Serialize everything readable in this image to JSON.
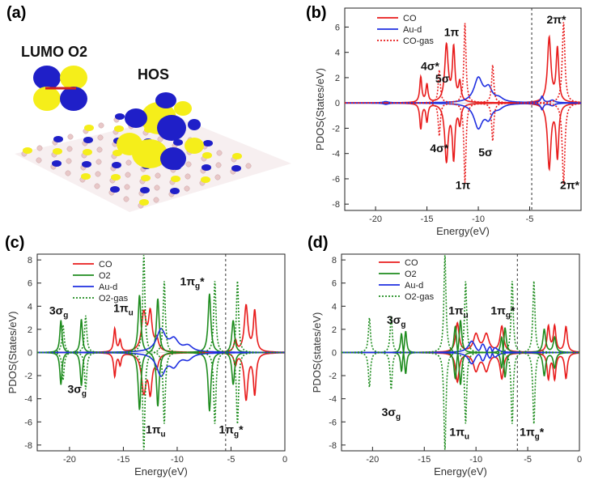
{
  "panel_a": {
    "label": "(a)",
    "lumo_label": "LUMO O2",
    "hos_label": "HOS",
    "colors": {
      "positive": "#f5ee1a",
      "negative": "#1f1fc8",
      "lattice_node": "#e8c8c8"
    }
  },
  "chart_data": [
    {
      "panel": "(b)",
      "type": "line",
      "xlabel": "Energy(eV)",
      "ylabel": "PDOS(States/eV)",
      "xlim": [
        -23,
        0
      ],
      "ylim": [
        -8.5,
        7.5
      ],
      "xticks": [
        -20,
        -15,
        -10,
        -5
      ],
      "yticks": [
        -8,
        -6,
        -4,
        -2,
        0,
        2,
        4,
        6
      ],
      "fermi_level": -4.8,
      "legend_position": "top-left",
      "series": [
        {
          "name": "CO",
          "color": "#e81c1c",
          "style": "solid",
          "peaks": [
            [
              -15.6,
              2.0,
              0.12
            ],
            [
              -15.0,
              1.4,
              0.12
            ],
            [
              -13.1,
              4.5,
              0.2
            ],
            [
              -12.4,
              4.2,
              0.15
            ],
            [
              -11.8,
              1.5,
              0.15
            ],
            [
              -3.1,
              5.1,
              0.2
            ],
            [
              -2.3,
              4.2,
              0.15
            ]
          ]
        },
        {
          "name": "Au-d",
          "color": "#1f2fe0",
          "style": "solid",
          "peaks": [
            [
              -19.0,
              0.1,
              0.3
            ],
            [
              -10.0,
              1.9,
              0.5
            ],
            [
              -9.0,
              1.0,
              0.4
            ],
            [
              -8.0,
              0.3,
              0.5
            ],
            [
              -3.8,
              0.5,
              0.15
            ],
            [
              -2.8,
              0.2,
              0.3
            ]
          ]
        },
        {
          "name": "CO-gas",
          "color": "#e81c1c",
          "style": "dotted",
          "peaks": [
            [
              -13.8,
              2.6,
              0.12
            ],
            [
              -11.3,
              6.3,
              0.12
            ],
            [
              -8.6,
              3.0,
              0.12
            ],
            [
              -1.7,
              6.4,
              0.15
            ]
          ]
        }
      ],
      "annotations": [
        {
          "text": "1π",
          "x": -12.6,
          "y": 5.3
        },
        {
          "text": "2π*",
          "x": -2.4,
          "y": 6.3
        },
        {
          "text": "4σ*",
          "x": -14.7,
          "y": 2.6
        },
        {
          "text": "5σ",
          "x": -13.5,
          "y": 1.6
        },
        {
          "text": "4σ*",
          "x": -13.8,
          "y": -3.9
        },
        {
          "text": "5σ",
          "x": -9.3,
          "y": -4.2
        },
        {
          "text": "1π",
          "x": -11.5,
          "y": -6.8
        },
        {
          "text": "2π*",
          "x": -1.1,
          "y": -6.8
        }
      ]
    },
    {
      "panel": "(c)",
      "type": "line",
      "xlabel": "Energy(eV)",
      "ylabel": "PDOS(States/eV)",
      "xlim": [
        -23,
        0
      ],
      "ylim": [
        -8.5,
        8.5
      ],
      "xticks": [
        -20,
        -15,
        -10,
        -5,
        0
      ],
      "yticks": [
        -8,
        -6,
        -4,
        -2,
        0,
        2,
        4,
        6,
        8
      ],
      "fermi_level": -5.5,
      "legend_position": "top-center",
      "series": [
        {
          "name": "CO",
          "color": "#e81c1c",
          "style": "solid",
          "peaks": [
            [
              -15.8,
              2.0,
              0.12
            ],
            [
              -15.3,
              1.0,
              0.12
            ],
            [
              -13.1,
              3.3,
              0.25
            ],
            [
              -12.5,
              3.2,
              0.2
            ],
            [
              -11.9,
              1.0,
              0.2
            ],
            [
              -4.6,
              1.0,
              0.15
            ],
            [
              -3.6,
              4.0,
              0.2
            ],
            [
              -2.8,
              3.5,
              0.15
            ]
          ]
        },
        {
          "name": "O2",
          "color": "#1e8c1e",
          "style": "solid",
          "peaks": [
            [
              -20.8,
              2.8,
              0.12
            ],
            [
              -18.9,
              -2.9,
              0.12
            ],
            [
              -13.5,
              5.0,
              0.15
            ],
            [
              -11.8,
              -4.7,
              0.15
            ],
            [
              -7.0,
              5.1,
              0.15
            ],
            [
              -4.8,
              -2.8,
              0.15
            ]
          ]
        },
        {
          "name": "Au-d",
          "color": "#1f2fe0",
          "style": "solid",
          "peaks": [
            [
              -11.5,
              1.9,
              0.5
            ],
            [
              -10.3,
              1.0,
              0.5
            ],
            [
              -9.0,
              0.5,
              0.5
            ]
          ]
        },
        {
          "name": "O2-gas",
          "color": "#1e8c1e",
          "style": "dotted",
          "peaks": [
            [
              -20.6,
              2.4,
              0.12
            ],
            [
              -18.5,
              -3.2,
              0.12
            ],
            [
              -13.1,
              8.5,
              0.12
            ],
            [
              -11.2,
              -6.2,
              0.12
            ],
            [
              -6.5,
              6.2,
              0.12
            ],
            [
              -4.4,
              -6.2,
              0.12
            ]
          ]
        }
      ],
      "annotations": [
        {
          "text": "3σg",
          "x": -21.0,
          "y": 3.3
        },
        {
          "text": "1πu",
          "x": -15.0,
          "y": 3.5
        },
        {
          "text": "1πg*",
          "x": -8.6,
          "y": 5.8
        },
        {
          "text": "3σg",
          "x": -19.3,
          "y": -3.5
        },
        {
          "text": "1πu",
          "x": -12.0,
          "y": -7.0
        },
        {
          "text": "1πg*",
          "x": -5.0,
          "y": -7.0
        }
      ]
    },
    {
      "panel": "(d)",
      "type": "line",
      "xlabel": "Energy(eV)",
      "ylabel": "PDOS(states/eV)",
      "xlim": [
        -23,
        0
      ],
      "ylim": [
        -8.5,
        8.5
      ],
      "xticks": [
        -20,
        -15,
        -10,
        -5,
        0
      ],
      "yticks": [
        -8,
        -6,
        -4,
        -2,
        0,
        2,
        4,
        6,
        8
      ],
      "fermi_level": -6.0,
      "legend_position": "top-left",
      "series": [
        {
          "name": "CO",
          "color": "#e81c1c",
          "style": "solid",
          "peaks": [
            [
              -11.8,
              2.5,
              0.2
            ],
            [
              -10.0,
              1.5,
              0.3
            ],
            [
              -9.0,
              1.5,
              0.3
            ],
            [
              -7.5,
              2.2,
              0.2
            ],
            [
              -3.0,
              2.2,
              0.15
            ],
            [
              -2.4,
              2.2,
              0.15
            ],
            [
              -1.3,
              2.2,
              0.15
            ]
          ]
        },
        {
          "name": "O2",
          "color": "#1e8c1e",
          "style": "solid",
          "peaks": [
            [
              -17.2,
              1.8,
              0.12
            ],
            [
              -16.8,
              -2.0,
              0.12
            ],
            [
              -12.0,
              2.5,
              0.15
            ],
            [
              -11.5,
              -3.0,
              0.15
            ],
            [
              -7.2,
              2.5,
              0.15
            ],
            [
              -7.5,
              -1.8,
              0.15
            ],
            [
              -3.4,
              2.0,
              0.15
            ],
            [
              -2.4,
              1.3,
              0.15
            ]
          ]
        },
        {
          "name": "Au-d",
          "color": "#1f2fe0",
          "style": "solid",
          "peaks": [
            [
              -10.4,
              1.0,
              0.4
            ],
            [
              -9.4,
              1.5,
              0.4
            ],
            [
              -8.3,
              1.0,
              0.4
            ],
            [
              -9.6,
              -1.0,
              0.4
            ],
            [
              -8.6,
              -1.3,
              0.4
            ]
          ]
        },
        {
          "name": "O2-gas",
          "color": "#1e8c1e",
          "style": "dotted",
          "peaks": [
            [
              -20.3,
              3.0,
              0.12
            ],
            [
              -18.2,
              -3.2,
              0.12
            ],
            [
              -13.0,
              8.5,
              0.12
            ],
            [
              -11.0,
              -6.2,
              0.12
            ],
            [
              -6.5,
              6.2,
              0.12
            ],
            [
              -4.4,
              -6.2,
              0.12
            ]
          ]
        }
      ],
      "annotations": [
        {
          "text": "3σg",
          "x": -17.7,
          "y": 2.5
        },
        {
          "text": "1πu",
          "x": -11.7,
          "y": 3.3
        },
        {
          "text": "1πg*",
          "x": -7.4,
          "y": 3.3
        },
        {
          "text": "3σg",
          "x": -18.2,
          "y": -5.5
        },
        {
          "text": "1πu",
          "x": -11.6,
          "y": -7.2
        },
        {
          "text": "1πg*",
          "x": -4.6,
          "y": -7.2
        }
      ]
    }
  ]
}
